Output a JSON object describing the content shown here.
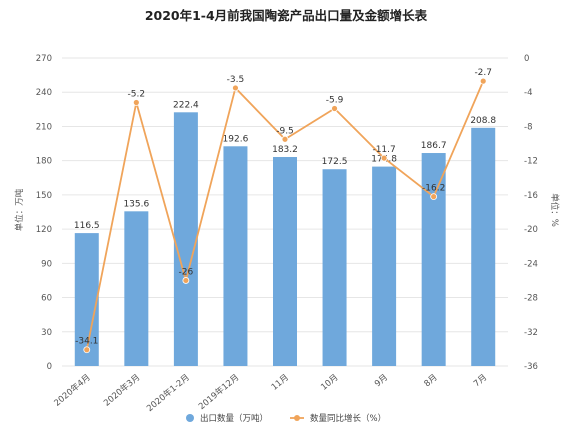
{
  "chart_data": {
    "type": "bar+line",
    "title": "2020年1-4月前我国陶瓷产品出口量及金额增长表",
    "categories": [
      "2020年4月",
      "2020年3月",
      "2020年1-2月",
      "2019年12月",
      "11月",
      "10月",
      "9月",
      "8月",
      "7月"
    ],
    "series": [
      {
        "name": "出口数量（万吨）",
        "type": "bar",
        "axis": "left",
        "color": "#6fa8dc",
        "values": [
          116.5,
          135.6,
          222.4,
          192.6,
          183.2,
          172.5,
          174.8,
          186.7,
          208.8
        ]
      },
      {
        "name": "数量同比增长（%）",
        "type": "line",
        "axis": "right",
        "color": "#f0a45a",
        "values": [
          -34.1,
          -5.2,
          -26,
          -3.5,
          -9.5,
          -5.9,
          -11.7,
          -16.2,
          -2.7
        ]
      }
    ],
    "left_axis": {
      "label": "单位：万吨",
      "ylim": [
        0,
        270
      ],
      "ticks": [
        0,
        30,
        60,
        90,
        120,
        150,
        180,
        210,
        240,
        270
      ]
    },
    "right_axis": {
      "label": "单位：%",
      "ylim": [
        -36,
        0
      ],
      "ticks": [
        0,
        -4,
        -8,
        -12,
        -16,
        -20,
        -24,
        -28,
        -32,
        -36
      ]
    },
    "grid": true,
    "legend_position": "bottom"
  }
}
